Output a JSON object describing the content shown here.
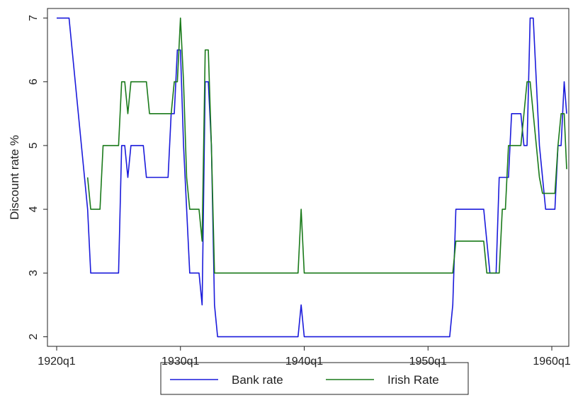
{
  "chart_data": {
    "type": "line",
    "title": "",
    "xlabel": "",
    "ylabel": "Discount rate %",
    "xlim": [
      1920.0,
      1960.8
    ],
    "ylim": [
      1.85,
      7.15
    ],
    "x_ticks": [
      1920,
      1930,
      1940,
      1950,
      1960
    ],
    "x_tick_labels": [
      "1920q1",
      "1930q1",
      "1940q1",
      "1950q1",
      "1960q1"
    ],
    "y_ticks": [
      2,
      3,
      4,
      5,
      6,
      7
    ],
    "y_tick_labels": [
      "2",
      "3",
      "4",
      "5",
      "6",
      "7"
    ],
    "grid": false,
    "legend_position": "bottom",
    "series": [
      {
        "name": "Bank rate",
        "color": "#1a1adb",
        "points": [
          [
            1920.0,
            7.0
          ],
          [
            1921.0,
            7.0
          ],
          [
            1921.5,
            6.0
          ],
          [
            1921.75,
            5.5
          ],
          [
            1922.0,
            5.0
          ],
          [
            1922.5,
            4.0
          ],
          [
            1922.75,
            3.0
          ],
          [
            1925.0,
            3.0
          ],
          [
            1925.25,
            5.0
          ],
          [
            1925.5,
            5.0
          ],
          [
            1925.75,
            4.5
          ],
          [
            1926.0,
            5.0
          ],
          [
            1927.0,
            5.0
          ],
          [
            1927.25,
            4.5
          ],
          [
            1929.0,
            4.5
          ],
          [
            1929.25,
            5.5
          ],
          [
            1929.5,
            5.5
          ],
          [
            1929.75,
            6.5
          ],
          [
            1930.0,
            6.5
          ],
          [
            1930.25,
            5.0
          ],
          [
            1930.5,
            4.0
          ],
          [
            1930.75,
            3.0
          ],
          [
            1931.5,
            3.0
          ],
          [
            1931.75,
            2.5
          ],
          [
            1932.0,
            6.0
          ],
          [
            1932.25,
            6.0
          ],
          [
            1932.5,
            5.0
          ],
          [
            1932.75,
            2.5
          ],
          [
            1933.0,
            2.0
          ],
          [
            1939.5,
            2.0
          ],
          [
            1939.75,
            2.5
          ],
          [
            1940.0,
            2.0
          ],
          [
            1951.75,
            2.0
          ],
          [
            1952.0,
            2.5
          ],
          [
            1952.25,
            4.0
          ],
          [
            1954.5,
            4.0
          ],
          [
            1954.75,
            3.5
          ],
          [
            1955.0,
            3.0
          ],
          [
            1955.5,
            3.0
          ],
          [
            1955.75,
            4.5
          ],
          [
            1956.5,
            4.5
          ],
          [
            1956.75,
            5.5
          ],
          [
            1957.5,
            5.5
          ],
          [
            1957.75,
            5.0
          ],
          [
            1958.0,
            5.0
          ],
          [
            1958.25,
            7.0
          ],
          [
            1958.5,
            7.0
          ],
          [
            1958.75,
            6.0
          ],
          [
            1959.0,
            5.0
          ],
          [
            1959.25,
            4.5
          ],
          [
            1959.5,
            4.0
          ],
          [
            1960.25,
            4.0
          ],
          [
            1960.5,
            5.0
          ],
          [
            1960.75,
            5.0
          ],
          [
            1961.0,
            6.0
          ],
          [
            1961.2,
            5.5
          ]
        ]
      },
      {
        "name": "Irish Rate",
        "color": "#1a7a1a",
        "points": [
          [
            1922.5,
            4.5
          ],
          [
            1922.75,
            4.0
          ],
          [
            1923.5,
            4.0
          ],
          [
            1923.75,
            5.0
          ],
          [
            1925.0,
            5.0
          ],
          [
            1925.25,
            6.0
          ],
          [
            1925.5,
            6.0
          ],
          [
            1925.75,
            5.5
          ],
          [
            1926.0,
            6.0
          ],
          [
            1927.25,
            6.0
          ],
          [
            1927.5,
            5.5
          ],
          [
            1929.25,
            5.5
          ],
          [
            1929.5,
            6.0
          ],
          [
            1929.75,
            6.0
          ],
          [
            1930.0,
            7.0
          ],
          [
            1930.25,
            6.0
          ],
          [
            1930.5,
            4.5
          ],
          [
            1930.75,
            4.0
          ],
          [
            1931.5,
            4.0
          ],
          [
            1931.75,
            3.5
          ],
          [
            1932.0,
            6.5
          ],
          [
            1932.25,
            6.5
          ],
          [
            1932.5,
            5.0
          ],
          [
            1932.75,
            3.0
          ],
          [
            1939.5,
            3.0
          ],
          [
            1939.75,
            4.0
          ],
          [
            1940.0,
            3.0
          ],
          [
            1952.0,
            3.0
          ],
          [
            1952.25,
            3.5
          ],
          [
            1954.5,
            3.5
          ],
          [
            1954.75,
            3.0
          ],
          [
            1955.75,
            3.0
          ],
          [
            1956.0,
            4.0
          ],
          [
            1956.25,
            4.0
          ],
          [
            1956.5,
            5.0
          ],
          [
            1957.5,
            5.0
          ],
          [
            1957.75,
            5.5
          ],
          [
            1958.0,
            6.0
          ],
          [
            1958.25,
            6.0
          ],
          [
            1958.5,
            5.5
          ],
          [
            1959.0,
            4.5
          ],
          [
            1959.25,
            4.25
          ],
          [
            1960.25,
            4.25
          ],
          [
            1960.5,
            5.0
          ],
          [
            1960.75,
            5.5
          ],
          [
            1961.0,
            5.5
          ],
          [
            1961.2,
            4.63
          ]
        ]
      }
    ]
  }
}
